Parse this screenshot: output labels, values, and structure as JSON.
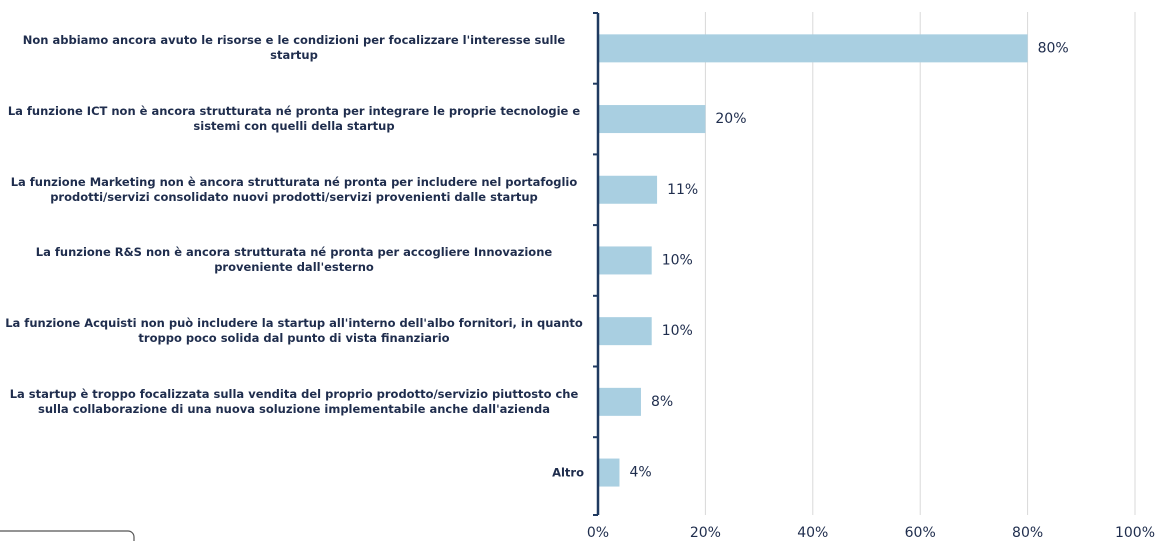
{
  "chart_data": {
    "type": "barh",
    "categories": [
      "Non abbiamo ancora avuto le risorse e le condizioni per focalizzare l'interesse sulle startup",
      "La funzione ICT non è ancora strutturata né pronta per integrare le proprie tecnologie e sistemi con quelli della startup",
      "La funzione Marketing non è ancora strutturata né pronta per includere nel portafoglio prodotti/servizi consolidato nuovi prodotti/servizi provenienti dalle startup",
      "La funzione R&S non è ancora strutturata né pronta per accogliere Innovazione proveniente dall'esterno",
      "La funzione Acquisti non può includere la startup all'interno dell'albo fornitori, in quanto troppo poco solida dal punto di vista finanziario",
      "La startup è troppo focalizzata sulla vendita del proprio prodotto/servizio piuttosto che sulla collaborazione di una nuova soluzione implementabile anche dall'azienda",
      "Altro"
    ],
    "values": [
      80,
      20,
      11,
      10,
      10,
      8,
      4
    ],
    "value_labels": [
      "80%",
      "20%",
      "11%",
      "10%",
      "10%",
      "8%",
      "4%"
    ],
    "color": "#a9cfe1",
    "xlim": [
      0,
      100
    ],
    "xticks": [
      {
        "value": 0,
        "label": "0%"
      },
      {
        "value": 20,
        "label": "20%"
      },
      {
        "value": 40,
        "label": "40%"
      },
      {
        "value": 60,
        "label": "60%"
      },
      {
        "value": 80,
        "label": "80%"
      },
      {
        "value": 100,
        "label": "100%"
      }
    ],
    "grid": true
  }
}
